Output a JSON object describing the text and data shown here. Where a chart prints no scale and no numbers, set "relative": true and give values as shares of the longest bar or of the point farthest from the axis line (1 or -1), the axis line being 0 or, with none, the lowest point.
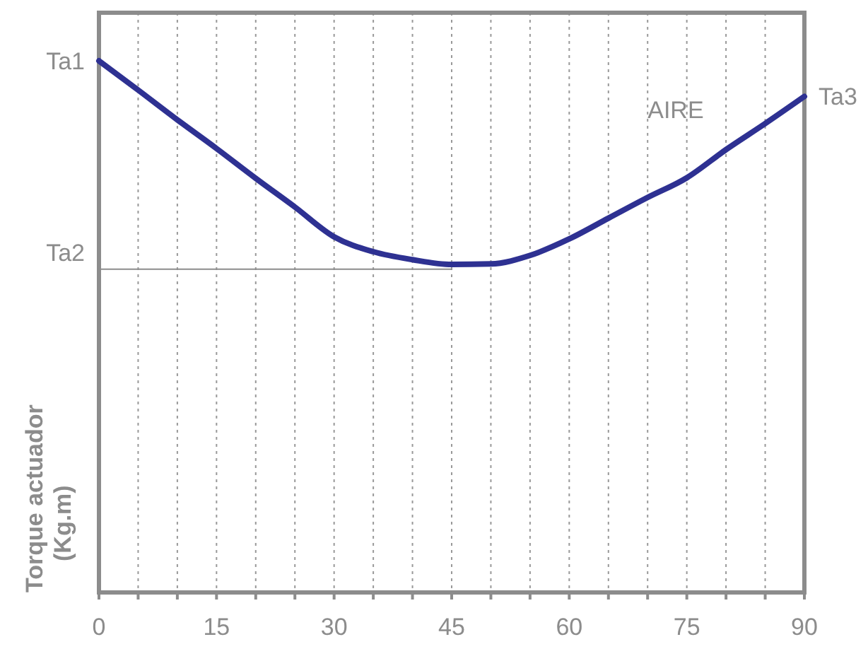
{
  "chart_data": {
    "type": "line",
    "relative": true,
    "ylabel": "Torque actuador\n(Kg.m)",
    "xlim": [
      0,
      90
    ],
    "xticks": [
      0,
      {
        "value": 5,
        "label": null
      },
      {
        "value": 10,
        "label": null
      },
      15,
      {
        "value": 20,
        "label": null
      },
      {
        "value": 25,
        "label": null
      },
      30,
      {
        "value": 35,
        "label": null
      },
      {
        "value": 40,
        "label": null
      },
      45,
      {
        "value": 50,
        "label": null
      },
      {
        "value": 55,
        "label": null
      },
      60,
      {
        "value": 65,
        "label": null
      },
      {
        "value": 70,
        "label": null
      },
      75,
      {
        "value": 80,
        "label": null
      },
      {
        "value": 85,
        "label": null
      },
      90
    ],
    "grid": "x",
    "line_style": "solid",
    "marker": "none",
    "series": [
      {
        "name": "AIRE",
        "color": "#2e3192",
        "x": [
          0,
          5,
          10,
          15,
          20,
          25,
          30,
          35,
          40,
          45,
          50,
          55,
          60,
          65,
          70,
          75,
          80,
          85,
          90
        ],
        "values": [
          1,
          0.945,
          0.889,
          0.835,
          0.779,
          0.725,
          0.669,
          0.641,
          0.626,
          0.617,
          0.618,
          0.634,
          0.665,
          0.704,
          0.743,
          0.78,
          0.833,
          0.882,
          0.933
        ]
      },
      {
        "name": "Ta2",
        "color": "#8c8c8c",
        "x": [
          0,
          45
        ],
        "values": [
          0.608,
          0.608
        ]
      }
    ],
    "annotations": [
      {
        "text": "Ta1",
        "x": 0,
        "y": 1
      },
      {
        "text": "Ta3",
        "x": 90,
        "y": 0.933
      }
    ]
  }
}
